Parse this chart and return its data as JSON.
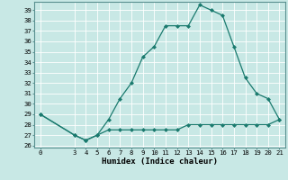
{
  "title": "",
  "xlabel": "Humidex (Indice chaleur)",
  "x": [
    0,
    3,
    4,
    5,
    6,
    7,
    8,
    9,
    10,
    11,
    12,
    13,
    14,
    15,
    16,
    17,
    18,
    19,
    20,
    21
  ],
  "y_upper": [
    29,
    27,
    26.5,
    27,
    28.5,
    30.5,
    32,
    34.5,
    35.5,
    37.5,
    37.5,
    37.5,
    39.5,
    39,
    38.5,
    35.5,
    32.5,
    31,
    30.5,
    28.5
  ],
  "y_lower": [
    29,
    27,
    26.5,
    27,
    27.5,
    27.5,
    27.5,
    27.5,
    27.5,
    27.5,
    27.5,
    28,
    28,
    28,
    28,
    28,
    28,
    28,
    28,
    28.5
  ],
  "ylim": [
    25.8,
    39.8
  ],
  "xlim": [
    -0.5,
    21.5
  ],
  "yticks": [
    26,
    27,
    28,
    29,
    30,
    31,
    32,
    33,
    34,
    35,
    36,
    37,
    38,
    39
  ],
  "xticks": [
    0,
    3,
    4,
    5,
    6,
    7,
    8,
    9,
    10,
    11,
    12,
    13,
    14,
    15,
    16,
    17,
    18,
    19,
    20,
    21
  ],
  "line_color": "#1a7a6e",
  "bg_color": "#c8e8e5",
  "plot_bg_color": "#c8e8e5",
  "grid_color": "#ffffff",
  "tick_label_fontsize": 5.2,
  "xlabel_fontsize": 6.5,
  "marker": "D",
  "marker_size": 2.0,
  "line_width": 0.9
}
